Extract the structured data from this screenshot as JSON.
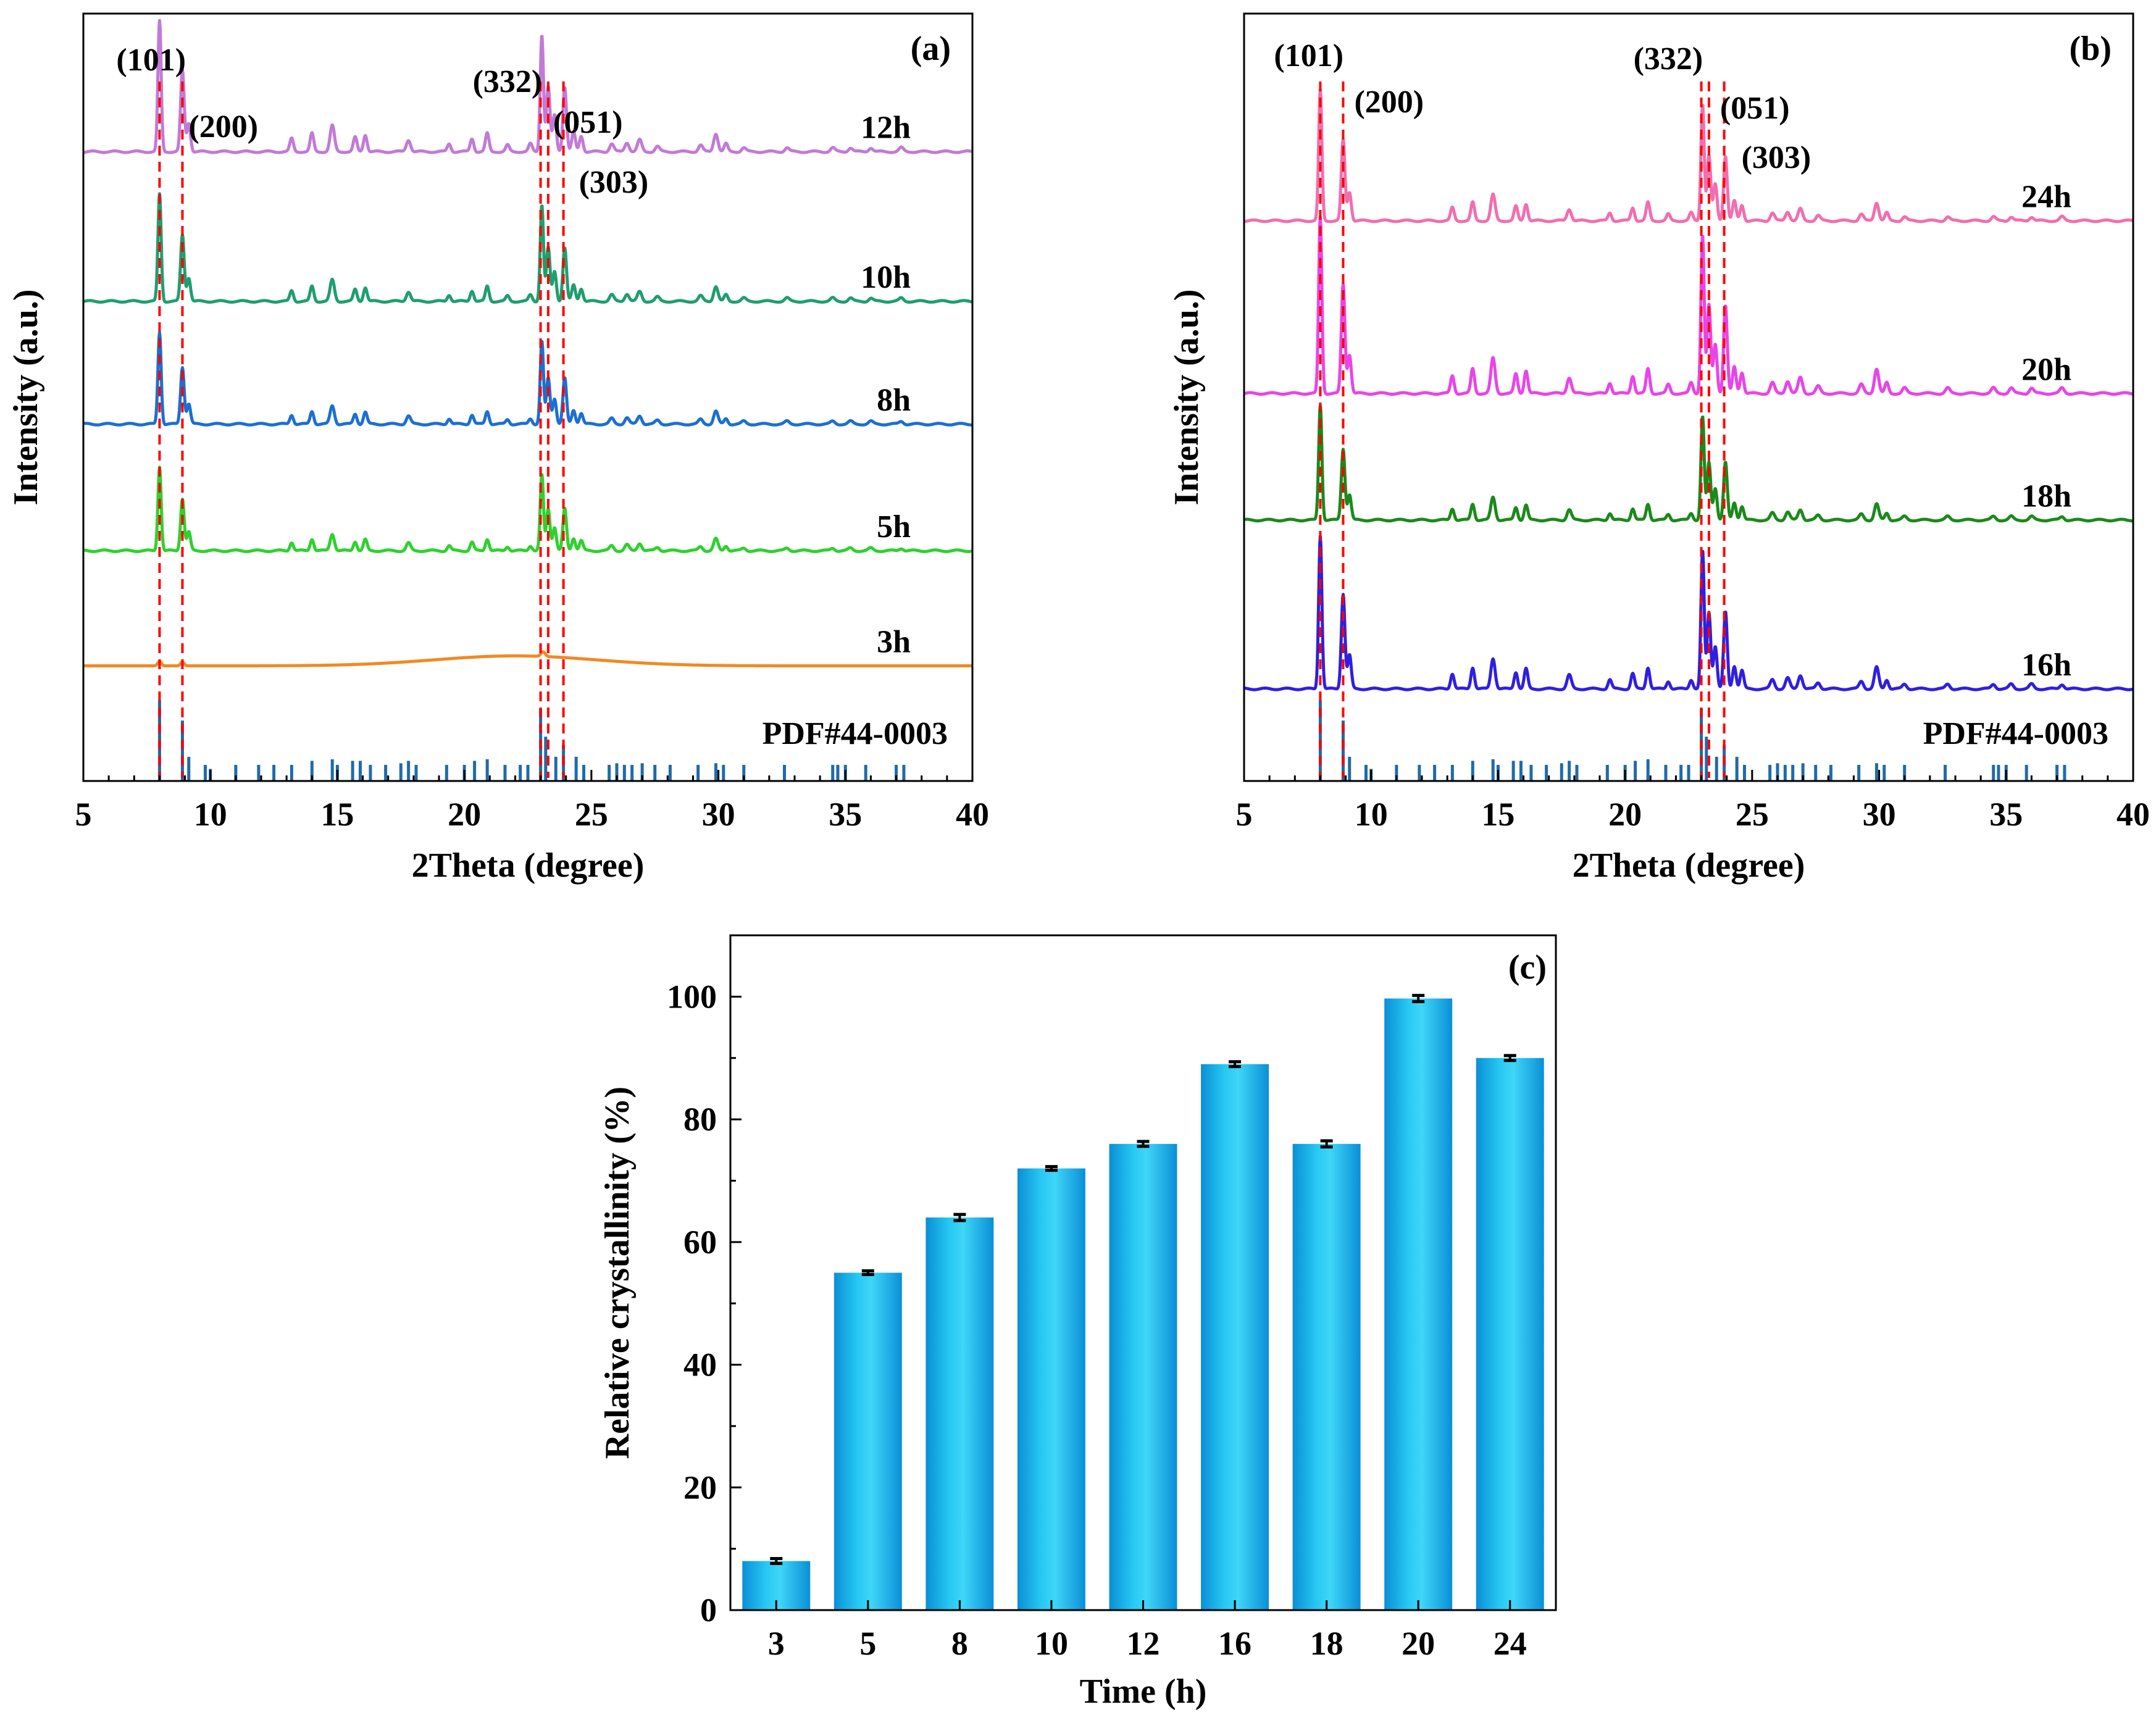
{
  "chart_data": [
    {
      "id": "a",
      "type": "line",
      "panel_label": "(a)",
      "xlabel": "2Theta (degree)",
      "ylabel": "Intensity (a.u.)",
      "xlim": [
        5,
        40
      ],
      "xticks": [
        5,
        10,
        15,
        20,
        25,
        30,
        35,
        40
      ],
      "ylim": [
        0,
        100
      ],
      "reference_label": "PDF#44-0003",
      "miller_labels": [
        {
          "text": "(101)",
          "x": 8.0
        },
        {
          "text": "(200)",
          "x": 8.9
        },
        {
          "text": "(332)",
          "x": 23.0
        },
        {
          "text": "(051)",
          "x": 23.3
        },
        {
          "text": "(303)",
          "x": 23.9
        }
      ],
      "dashed_lines_x": [
        8.0,
        8.9,
        23.0,
        23.3,
        23.9
      ],
      "series": [
        {
          "name": "12h",
          "color": "#c27ad6",
          "baseline": 82,
          "scale": 17,
          "crystallinity": 76
        },
        {
          "name": "10h",
          "color": "#1f9e6e",
          "baseline": 62.5,
          "scale": 14,
          "crystallinity": 72
        },
        {
          "name": "8h",
          "color": "#1c6fd1",
          "baseline": 46.5,
          "scale": 12,
          "crystallinity": 64
        },
        {
          "name": "5h",
          "color": "#2ed12e",
          "baseline": 30,
          "scale": 11,
          "crystallinity": 55
        },
        {
          "name": "3h",
          "color": "#f08a24",
          "baseline": 15,
          "scale": 0,
          "crystallinity": 8
        }
      ]
    },
    {
      "id": "b",
      "type": "line",
      "panel_label": "(b)",
      "xlabel": "2Theta (degree)",
      "ylabel": "Intensity (a.u.)",
      "xlim": [
        5,
        40
      ],
      "xticks": [
        5,
        10,
        15,
        20,
        25,
        30,
        35,
        40
      ],
      "ylim": [
        0,
        100
      ],
      "reference_label": "PDF#44-0003",
      "miller_labels": [
        {
          "text": "(101)",
          "x": 8.0
        },
        {
          "text": "(200)",
          "x": 8.9
        },
        {
          "text": "(332)",
          "x": 23.0
        },
        {
          "text": "(051)",
          "x": 23.3
        },
        {
          "text": "(303)",
          "x": 23.9
        }
      ],
      "dashed_lines_x": [
        8.0,
        8.9,
        23.0,
        23.3,
        23.9
      ],
      "series": [
        {
          "name": "24h",
          "color": "#f06fb0",
          "baseline": 73,
          "scale": 17,
          "crystallinity": 90
        },
        {
          "name": "20h",
          "color": "#e845e8",
          "baseline": 50.5,
          "scale": 23,
          "crystallinity": 100
        },
        {
          "name": "18h",
          "color": "#1a8a1a",
          "baseline": 34,
          "scale": 15,
          "crystallinity": 76
        },
        {
          "name": "16h",
          "color": "#2f1fe0",
          "baseline": 12,
          "scale": 20,
          "crystallinity": 89
        }
      ]
    },
    {
      "id": "c",
      "type": "bar",
      "panel_label": "(c)",
      "xlabel": "Time (h)",
      "ylabel": "Relative crystallinity (%)",
      "categories": [
        "3",
        "5",
        "8",
        "10",
        "12",
        "16",
        "18",
        "20",
        "24"
      ],
      "values": [
        8,
        55,
        64,
        72,
        76,
        89,
        76,
        99.7,
        90
      ],
      "errors": [
        0.4,
        0.3,
        0.5,
        0.3,
        0.4,
        0.4,
        0.5,
        0.5,
        0.4
      ],
      "ylim": [
        0,
        110
      ],
      "yticks": [
        0,
        20,
        40,
        60,
        80,
        100
      ],
      "bar_color": "#22c4f0"
    }
  ],
  "reference_peaks": [
    {
      "x": 8.0,
      "h": 1.0
    },
    {
      "x": 8.9,
      "h": 0.75
    },
    {
      "x": 9.15,
      "h": 0.3
    },
    {
      "x": 9.8,
      "h": 0.2
    },
    {
      "x": 10.0,
      "h": 0.15
    },
    {
      "x": 11.0,
      "h": 0.2
    },
    {
      "x": 11.9,
      "h": 0.2
    },
    {
      "x": 12.5,
      "h": 0.2
    },
    {
      "x": 13.2,
      "h": 0.2
    },
    {
      "x": 14.0,
      "h": 0.25
    },
    {
      "x": 14.8,
      "h": 0.27
    },
    {
      "x": 15.0,
      "h": 0.2
    },
    {
      "x": 15.6,
      "h": 0.25
    },
    {
      "x": 15.9,
      "h": 0.25
    },
    {
      "x": 16.3,
      "h": 0.2
    },
    {
      "x": 16.9,
      "h": 0.2
    },
    {
      "x": 17.5,
      "h": 0.22
    },
    {
      "x": 17.8,
      "h": 0.25
    },
    {
      "x": 18.1,
      "h": 0.2
    },
    {
      "x": 19.3,
      "h": 0.2
    },
    {
      "x": 20.0,
      "h": 0.2
    },
    {
      "x": 20.4,
      "h": 0.25
    },
    {
      "x": 20.9,
      "h": 0.27
    },
    {
      "x": 21.6,
      "h": 0.2
    },
    {
      "x": 22.2,
      "h": 0.2
    },
    {
      "x": 22.5,
      "h": 0.2
    },
    {
      "x": 23.0,
      "h": 0.9
    },
    {
      "x": 23.2,
      "h": 0.55
    },
    {
      "x": 23.6,
      "h": 0.3
    },
    {
      "x": 23.9,
      "h": 0.45
    },
    {
      "x": 24.4,
      "h": 0.3
    },
    {
      "x": 24.7,
      "h": 0.2
    },
    {
      "x": 25.7,
      "h": 0.2
    },
    {
      "x": 26.0,
      "h": 0.22
    },
    {
      "x": 26.3,
      "h": 0.2
    },
    {
      "x": 26.6,
      "h": 0.2
    },
    {
      "x": 27.0,
      "h": 0.22
    },
    {
      "x": 27.5,
      "h": 0.2
    },
    {
      "x": 28.1,
      "h": 0.2
    },
    {
      "x": 29.2,
      "h": 0.2
    },
    {
      "x": 29.9,
      "h": 0.22
    },
    {
      "x": 30.2,
      "h": 0.2
    },
    {
      "x": 31.0,
      "h": 0.2
    },
    {
      "x": 32.6,
      "h": 0.2
    },
    {
      "x": 34.5,
      "h": 0.2
    },
    {
      "x": 34.7,
      "h": 0.2
    },
    {
      "x": 35.0,
      "h": 0.2
    },
    {
      "x": 35.8,
      "h": 0.2
    },
    {
      "x": 37.0,
      "h": 0.2
    },
    {
      "x": 37.3,
      "h": 0.2
    }
  ],
  "pattern_peaks": [
    {
      "x": 8.0,
      "h": 1.0,
      "w": 0.09
    },
    {
      "x": 8.9,
      "h": 0.62,
      "w": 0.1
    },
    {
      "x": 9.15,
      "h": 0.22,
      "w": 0.1
    },
    {
      "x": 13.2,
      "h": 0.1,
      "w": 0.1
    },
    {
      "x": 14.0,
      "h": 0.14,
      "w": 0.1
    },
    {
      "x": 14.8,
      "h": 0.2,
      "w": 0.12
    },
    {
      "x": 15.7,
      "h": 0.11,
      "w": 0.1
    },
    {
      "x": 16.1,
      "h": 0.13,
      "w": 0.1
    },
    {
      "x": 17.8,
      "h": 0.09,
      "w": 0.12
    },
    {
      "x": 19.4,
      "h": 0.06,
      "w": 0.1
    },
    {
      "x": 20.3,
      "h": 0.1,
      "w": 0.1
    },
    {
      "x": 20.9,
      "h": 0.14,
      "w": 0.1
    },
    {
      "x": 21.7,
      "h": 0.05,
      "w": 0.1
    },
    {
      "x": 22.6,
      "h": 0.06,
      "w": 0.1
    },
    {
      "x": 23.05,
      "h": 0.9,
      "w": 0.09
    },
    {
      "x": 23.3,
      "h": 0.5,
      "w": 0.1
    },
    {
      "x": 23.55,
      "h": 0.28,
      "w": 0.1
    },
    {
      "x": 23.95,
      "h": 0.5,
      "w": 0.1
    },
    {
      "x": 24.3,
      "h": 0.15,
      "w": 0.1
    },
    {
      "x": 24.6,
      "h": 0.12,
      "w": 0.1
    },
    {
      "x": 25.8,
      "h": 0.06,
      "w": 0.12
    },
    {
      "x": 26.4,
      "h": 0.07,
      "w": 0.12
    },
    {
      "x": 26.9,
      "h": 0.09,
      "w": 0.12
    },
    {
      "x": 27.6,
      "h": 0.04,
      "w": 0.12
    },
    {
      "x": 29.3,
      "h": 0.05,
      "w": 0.12
    },
    {
      "x": 29.9,
      "h": 0.14,
      "w": 0.12
    },
    {
      "x": 30.3,
      "h": 0.06,
      "w": 0.1
    },
    {
      "x": 31.0,
      "h": 0.03,
      "w": 0.12
    },
    {
      "x": 32.7,
      "h": 0.03,
      "w": 0.12
    },
    {
      "x": 34.5,
      "h": 0.03,
      "w": 0.12
    },
    {
      "x": 35.2,
      "h": 0.03,
      "w": 0.12
    },
    {
      "x": 36.0,
      "h": 0.03,
      "w": 0.12
    },
    {
      "x": 37.2,
      "h": 0.03,
      "w": 0.12
    }
  ]
}
